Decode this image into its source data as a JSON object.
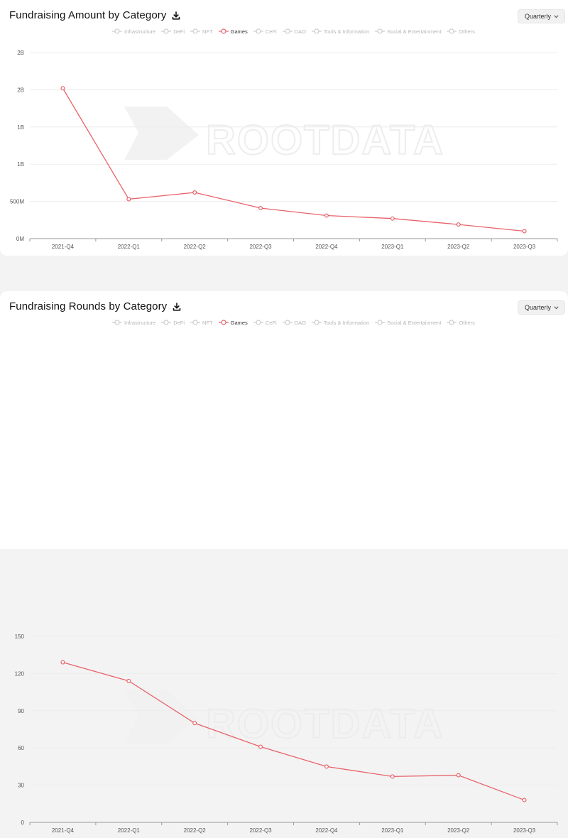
{
  "watermark": "ROOTDATA",
  "series_color": "#e8636b",
  "muted_color": "#cccccc",
  "select_icon": "chevron-down-icon",
  "title_icon": "download-icon",
  "amount_card": {
    "title": "Fundraising Amount by Category",
    "period": "Quarterly"
  },
  "rounds_card": {
    "title": "Fundraising Rounds by Category",
    "period": "Quarterly"
  },
  "legend": [
    "Infrastructure",
    "DeFi",
    "NFT",
    "Games",
    "CeFi",
    "DAO",
    "Tools & Information",
    "Social & Entertainment",
    "Others"
  ],
  "legend_active": "Games",
  "chart_data": [
    {
      "type": "line",
      "title": "Fundraising Amount by Category",
      "categories": [
        "2021-Q4",
        "2022-Q1",
        "2022-Q2",
        "2022-Q3",
        "2022-Q4",
        "2023-Q1",
        "2023-Q2",
        "2023-Q3"
      ],
      "series": [
        {
          "name": "Games",
          "values": [
            2020000000,
            530000000,
            620000000,
            410000000,
            310000000,
            270000000,
            190000000,
            100000000
          ]
        }
      ],
      "ylim": [
        0,
        2500000000
      ],
      "yticks": [
        0,
        500000000,
        1000000000,
        1500000000,
        2000000000,
        2500000000
      ],
      "ytick_labels": [
        "0M",
        "500M",
        "1B",
        "1B",
        "2B",
        "2B"
      ],
      "grid": true,
      "legend_position": "top"
    },
    {
      "type": "line",
      "title": "Fundraising Rounds by Category",
      "categories": [
        "2021-Q4",
        "2022-Q1",
        "2022-Q2",
        "2022-Q3",
        "2022-Q4",
        "2023-Q1",
        "2023-Q2",
        "2023-Q3"
      ],
      "series": [
        {
          "name": "Games",
          "values": [
            129,
            114,
            80,
            61,
            45,
            37,
            38,
            18
          ]
        }
      ],
      "ylim": [
        0,
        150
      ],
      "yticks": [
        0,
        30,
        60,
        90,
        120,
        150
      ],
      "ytick_labels": [
        "0",
        "30",
        "60",
        "90",
        "120",
        "150"
      ],
      "grid": true,
      "legend_position": "top"
    }
  ]
}
